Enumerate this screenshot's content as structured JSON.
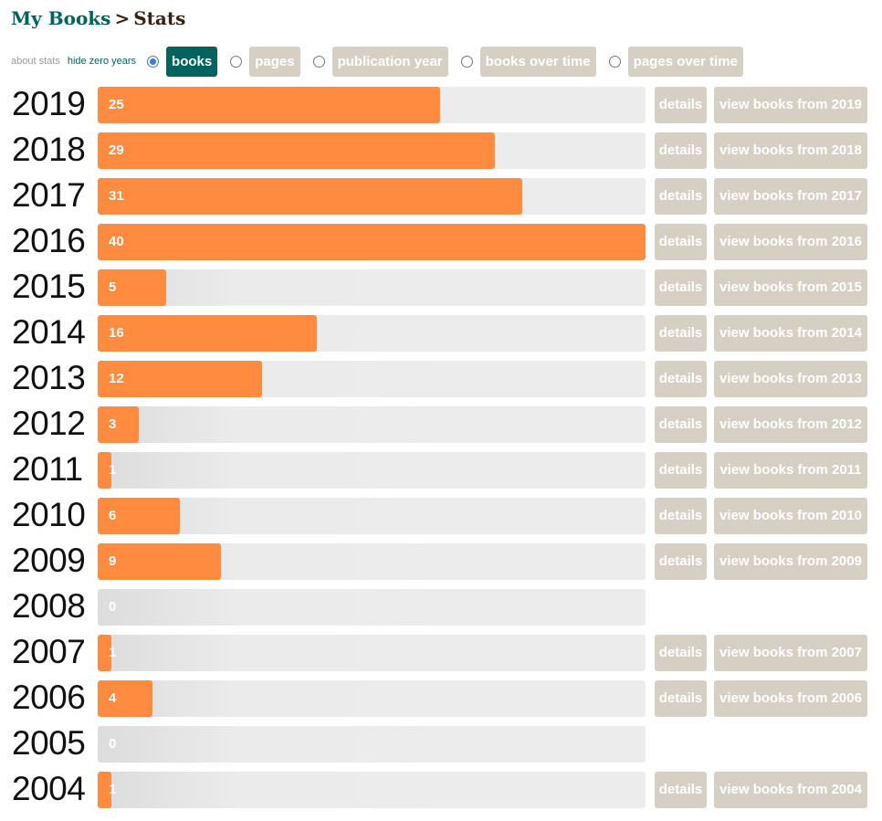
{
  "breadcrumb": {
    "root": "My Books",
    "separator": ">",
    "current": "Stats"
  },
  "controls": {
    "about_stats": "about stats",
    "hide_zero_years": "hide zero years",
    "options": [
      {
        "label": "books",
        "selected": true
      },
      {
        "label": "pages",
        "selected": false
      },
      {
        "label": "publication year",
        "selected": false
      },
      {
        "label": "books over time",
        "selected": false
      },
      {
        "label": "pages over time",
        "selected": false
      }
    ]
  },
  "colors": {
    "bar": "#ff8b40",
    "track": "#ececec",
    "accent": "#00635d",
    "button": "#d6d0c4"
  },
  "max_count": 40,
  "rows": [
    {
      "year": "2019",
      "count": 25,
      "details": "details",
      "view": "view books from 2019"
    },
    {
      "year": "2018",
      "count": 29,
      "details": "details",
      "view": "view books from 2018"
    },
    {
      "year": "2017",
      "count": 31,
      "details": "details",
      "view": "view books from 2017"
    },
    {
      "year": "2016",
      "count": 40,
      "details": "details",
      "view": "view books from 2016"
    },
    {
      "year": "2015",
      "count": 5,
      "details": "details",
      "view": "view books from 2015"
    },
    {
      "year": "2014",
      "count": 16,
      "details": "details",
      "view": "view books from 2014"
    },
    {
      "year": "2013",
      "count": 12,
      "details": "details",
      "view": "view books from 2013"
    },
    {
      "year": "2012",
      "count": 3,
      "details": "details",
      "view": "view books from 2012"
    },
    {
      "year": "2011",
      "count": 1,
      "details": "details",
      "view": "view books from 2011"
    },
    {
      "year": "2010",
      "count": 6,
      "details": "details",
      "view": "view books from 2010"
    },
    {
      "year": "2009",
      "count": 9,
      "details": "details",
      "view": "view books from 2009"
    },
    {
      "year": "2008",
      "count": 0
    },
    {
      "year": "2007",
      "count": 1,
      "details": "details",
      "view": "view books from 2007"
    },
    {
      "year": "2006",
      "count": 4,
      "details": "details",
      "view": "view books from 2006"
    },
    {
      "year": "2005",
      "count": 0
    },
    {
      "year": "2004",
      "count": 1,
      "details": "details",
      "view": "view books from 2004"
    }
  ]
}
